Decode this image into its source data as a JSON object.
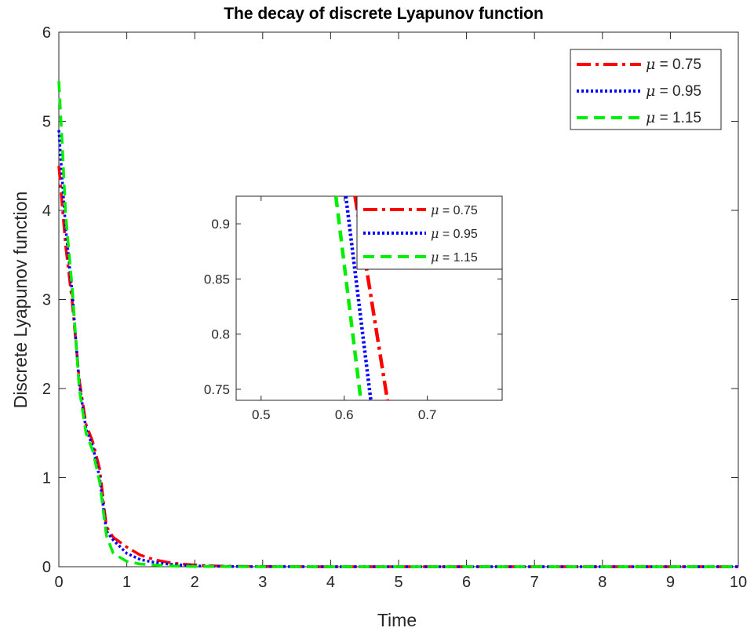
{
  "chart_data": {
    "title": "The decay of discrete Lyapunov function",
    "main": {
      "type": "line",
      "xlabel": "Time",
      "ylabel": "Discrete Lyapunov function",
      "xlim": [
        0,
        10
      ],
      "ylim": [
        0,
        6
      ],
      "xticks": [
        "0",
        "1",
        "2",
        "3",
        "4",
        "5",
        "6",
        "7",
        "8",
        "9",
        "10"
      ],
      "yticks": [
        "0",
        "1",
        "2",
        "3",
        "4",
        "5",
        "6"
      ],
      "legend_position": "top-right",
      "grid": false
    },
    "inset": {
      "type": "line",
      "xlim": [
        0.47,
        0.79
      ],
      "ylim": [
        0.74,
        0.925
      ],
      "xticks": [
        "0.5",
        "0.6",
        "0.7"
      ],
      "yticks": [
        "0.75",
        "0.8",
        "0.85",
        "0.9"
      ],
      "legend_position": "top-right"
    },
    "series": [
      {
        "name": "0.75",
        "legend_symbol": "μ",
        "legend_eq": " = ",
        "color": "#ff0000",
        "dash": "dashdot",
        "x": [
          0,
          0.05,
          0.1,
          0.2,
          0.3,
          0.4,
          0.5,
          0.6,
          0.7,
          0.8,
          1.0,
          1.2,
          1.4,
          1.6,
          1.8,
          2.0,
          2.2,
          2.5,
          3,
          4,
          5,
          6,
          7,
          8,
          9,
          10
        ],
        "y": [
          4.5,
          4.05,
          3.6,
          2.95,
          2.1,
          1.6,
          1.4,
          1.1,
          0.45,
          0.33,
          0.22,
          0.13,
          0.08,
          0.05,
          0.03,
          0.02,
          0.01,
          0.005,
          0.002,
          0,
          0,
          0,
          0,
          0,
          0,
          0
        ],
        "inset_x": [
          0.613,
          0.652
        ],
        "inset_y": [
          0.925,
          0.74
        ]
      },
      {
        "name": "0.95",
        "legend_symbol": "μ",
        "legend_eq": " = ",
        "color": "#0000ff",
        "dash": "dotted",
        "x": [
          0,
          0.05,
          0.1,
          0.2,
          0.3,
          0.4,
          0.5,
          0.6,
          0.7,
          0.8,
          1.0,
          1.2,
          1.4,
          1.6,
          1.8,
          2.0,
          2.2,
          2.5,
          3,
          4,
          5,
          6,
          7,
          8,
          9,
          10
        ],
        "y": [
          4.9,
          4.35,
          3.8,
          3.05,
          2.05,
          1.55,
          1.35,
          1.0,
          0.4,
          0.3,
          0.15,
          0.08,
          0.05,
          0.03,
          0.02,
          0.01,
          0.005,
          0.003,
          0.001,
          0,
          0,
          0,
          0,
          0,
          0,
          0
        ],
        "inset_x": [
          0.602,
          0.632
        ],
        "inset_y": [
          0.925,
          0.74
        ]
      },
      {
        "name": "1.15",
        "legend_symbol": "μ",
        "legend_eq": " = ",
        "color": "#00ee00",
        "dash": "dashed",
        "x": [
          0,
          0.05,
          0.1,
          0.2,
          0.3,
          0.4,
          0.5,
          0.6,
          0.7,
          0.8,
          1.0,
          1.2,
          1.4,
          1.6,
          1.8,
          2.0,
          2.2,
          2.5,
          3,
          4,
          5,
          6,
          7,
          8,
          9,
          10
        ],
        "y": [
          5.45,
          4.75,
          3.95,
          3.1,
          2.0,
          1.5,
          1.3,
          0.95,
          0.35,
          0.15,
          0.06,
          0.03,
          0.02,
          0.01,
          0.005,
          0.003,
          0.002,
          0.001,
          0,
          0,
          0,
          0,
          0,
          0,
          0,
          0
        ],
        "inset_x": [
          0.59,
          0.62
        ],
        "inset_y": [
          0.925,
          0.74
        ]
      }
    ]
  }
}
